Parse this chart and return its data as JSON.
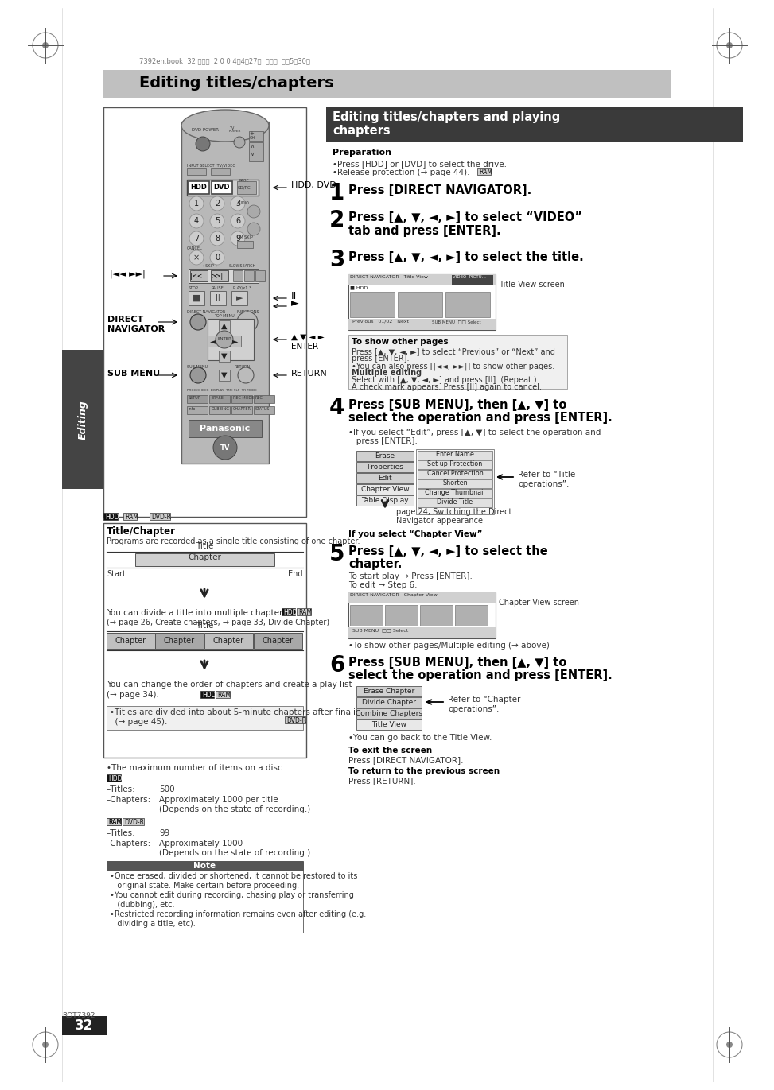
{
  "page_bg": "#ffffff",
  "header_bg": "#c8c8c8",
  "header_title": "Editing titles/chapters",
  "right_section_header_bg": "#3a3a3a",
  "right_section_header_text": "Editing titles/chapters and playing\nchapters",
  "top_small_text": "7392en.book  32 ページ  2 0 0 4年4月27日  火曜日  午後5時30分",
  "hdd_dvd_label": "HDD, DVD",
  "direct_nav_label": "DIRECT\nNAVIGATOR",
  "sub_menu_label": "SUB MENU",
  "return_label": "RETURN",
  "preparation_title": "Preparation",
  "prep_bullet1": "•Press [HDD] or [DVD] to select the drive.",
  "prep_bullet2": "•Release protection (→ page 44).",
  "step1_text": "Press [DIRECT NAVIGATOR].",
  "step2_text": "Press [▲, ▼, ◄, ►] to select “VIDEO”\ntab and press [ENTER].",
  "step3_text": "Press [▲, ▼, ◄, ►] to select the title.",
  "title_view_label": "Title View screen",
  "show_other_pages_title": "To show other pages",
  "sop_line1": "Press [▲, ▼, ◄, ►] to select “Previous” or “Next” and",
  "sop_line2": "press [ENTER].",
  "sop_line3": "•You can also press [|◄◄, ►►|] to show other pages.",
  "sop_line4": "Multiple editing",
  "sop_line5": "Select with [▲, ▼, ◄, ►] and press [II]. (Repeat.)",
  "sop_line6": "A check mark appears. Press [II] again to cancel.",
  "step4_text_l1": "Press [SUB MENU], then [▲, ▼] to",
  "step4_text_l2": "select the operation and press [ENTER].",
  "step4_note": "•If you select “Edit”, press [▲, ▼] to select the operation and",
  "step4_note2": "   press [ENTER].",
  "refer_title_ops": "Refer to “Title\noperations”.",
  "page24_note_l1": "page 24, Switching the Direct",
  "page24_note_l2": "Navigator appearance",
  "if_chapter_view": "If you select “Chapter View”",
  "step5_text_l1": "Press [▲, ▼, ◄, ►] to select the",
  "step5_text_l2": "chapter.",
  "to_start_play": "To start play → Press [ENTER].",
  "to_edit": "To edit → Step 6.",
  "chapter_view_label": "Chapter View screen",
  "show_other_note": "•To show other pages/Multiple editing (→ above)",
  "step6_text_l1": "Press [SUB MENU], then [▲, ▼] to",
  "step6_text_l2": "select the operation and press [ENTER].",
  "refer_chapter_ops": "Refer to “Chapter\noperations”.",
  "can_go_back": "•You can go back to the Title View.",
  "to_exit_title": "To exit the screen",
  "to_exit_text": "Press [DIRECT NAVIGATOR].",
  "to_return_title": "To return to the previous screen",
  "to_return_text": "Press [RETURN].",
  "title_chapter_section_title": "Title/Chapter",
  "title_chapter_desc": "Programs are recorded as a single title consisting of one chapter.",
  "divide_desc": "You can divide a title into multiple chapters.",
  "divide_ref": "(→ page 26, Create chapters, → page 33, Divide Chapter)",
  "reorder_desc_l1": "You can change the order of chapters and create a play list",
  "reorder_desc_l2": "(→ page 34).",
  "finalize_note_l1": "•Titles are divided into about 5-minute chapters after finalizing",
  "finalize_note_l2": "  (→ page 45).",
  "max_items_title": "•The maximum number of items on a disc",
  "hdd_titles": "–Titles:",
  "hdd_titles_val": "500",
  "hdd_chapters": "–Chapters:",
  "hdd_chapters_val1": "Approximately 1000 per title",
  "hdd_chapters_val2": "(Depends on the state of recording.)",
  "ram_titles": "–Titles:",
  "ram_titles_val": "99",
  "ram_chapters": "–Chapters:",
  "ram_chapters_val1": "Approximately 1000",
  "ram_chapters_val2": "(Depends on the state of recording.)",
  "note_title": "Note",
  "note1_l1": "•Once erased, divided or shortened, it cannot be restored to its",
  "note1_l2": "   original state. Make certain before proceeding.",
  "note2_l1": "•You cannot edit during recording, chasing play or transferring",
  "note2_l2": "   (dubbing), etc.",
  "note3_l1": "•Restricted recording information remains even after editing (e.g.",
  "note3_l2": "   dividing a title, etc).",
  "page_number": "32",
  "rqt_text": "RQT7392"
}
